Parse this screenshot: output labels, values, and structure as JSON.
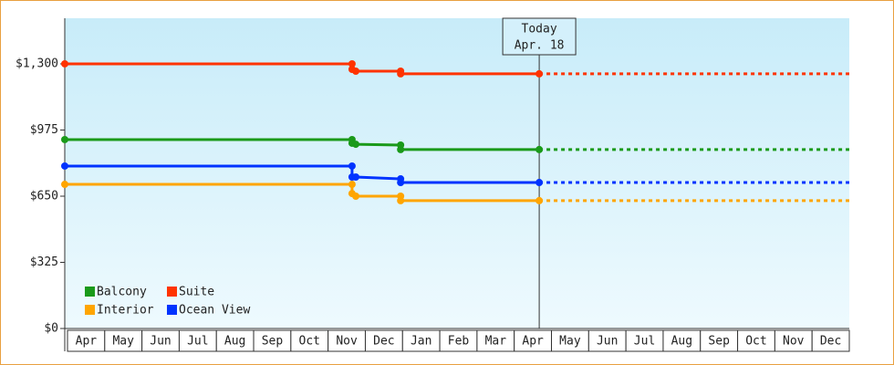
{
  "chart_data": {
    "type": "line",
    "categories": [
      "Apr",
      "May",
      "Jun",
      "Jul",
      "Aug",
      "Sep",
      "Oct",
      "Nov",
      "Dec",
      "Jan",
      "Feb",
      "Mar",
      "Apr",
      "May",
      "Jun",
      "Jul",
      "Aug",
      "Sep",
      "Oct",
      "Nov",
      "Dec"
    ],
    "x": [
      0,
      7.69,
      7.69,
      7.79,
      8.99,
      8.99,
      12.7
    ],
    "xlim": [
      0,
      21
    ],
    "ylim": [
      0,
      1524
    ],
    "yticks": [
      {
        "value": 0,
        "label": "$0"
      },
      {
        "value": 325,
        "label": "$325"
      },
      {
        "value": 650,
        "label": "$650"
      },
      {
        "value": 975,
        "label": "$975"
      },
      {
        "value": 1300,
        "label": "$1,300"
      }
    ],
    "series": [
      {
        "name": "Balcony",
        "color": "#1a9a1a",
        "values": [
          928,
          928,
          910,
          905,
          901,
          879,
          879
        ]
      },
      {
        "name": "Suite",
        "color": "#ff3300",
        "values": [
          1300,
          1300,
          1273,
          1264,
          1264,
          1251,
          1251
        ]
      },
      {
        "name": "Interior",
        "color": "#ffa500",
        "values": [
          708,
          708,
          663,
          650,
          650,
          628,
          628
        ]
      },
      {
        "name": "Ocean View",
        "color": "#0033ff",
        "values": [
          798,
          798,
          744,
          744,
          735,
          717,
          717
        ]
      }
    ],
    "today": {
      "x": 12.7,
      "label": [
        "Today",
        "Apr. 18"
      ]
    },
    "legend": "lower-left"
  }
}
